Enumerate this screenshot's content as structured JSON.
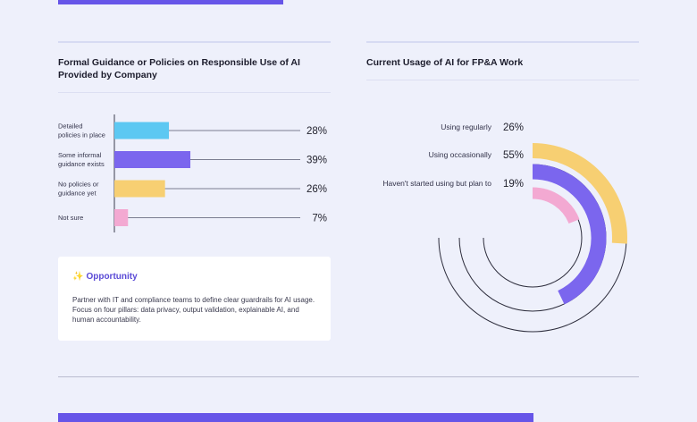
{
  "left_panel": {
    "title": "Formal Guidance or Policies on Responsible Use of AI Provided by Company"
  },
  "right_panel": {
    "title": "Current Usage of AI for FP&A Work"
  },
  "opportunity": {
    "icon": "sparkle-icon",
    "title": "Opportunity",
    "body": "Partner with IT and compliance teams to define clear guardrails for AI usage. Focus on four pillars: data privacy, output validation, explainable AI, and human accountability."
  },
  "chart_data": [
    {
      "type": "bar",
      "orientation": "horizontal",
      "title": "Formal Guidance or Policies on Responsible Use of AI Provided by Company",
      "categories": [
        [
          "Detailed",
          "policies in place"
        ],
        [
          "Some informal",
          "guidance exists"
        ],
        [
          "No policies or",
          "guidance yet"
        ],
        [
          "Not sure"
        ]
      ],
      "values": [
        28,
        39,
        26,
        7
      ],
      "value_labels": [
        "28%",
        "39%",
        "26%",
        "7%"
      ],
      "colors": [
        "#5cc8f2",
        "#7b66ee",
        "#f7cf72",
        "#f3a9d2"
      ],
      "xlim": [
        0,
        100
      ]
    },
    {
      "type": "radial_bar",
      "title": "Current Usage of AI for FP&A Work",
      "categories": [
        "Using regularly",
        "Using occasionally",
        "Haven't started using but plan to"
      ],
      "values": [
        26,
        55,
        19
      ],
      "value_labels": [
        "26%",
        "55%",
        "19%"
      ],
      "colors": [
        "#f7cf72",
        "#7b66ee",
        "#f3a9d2"
      ],
      "max": 100
    }
  ]
}
